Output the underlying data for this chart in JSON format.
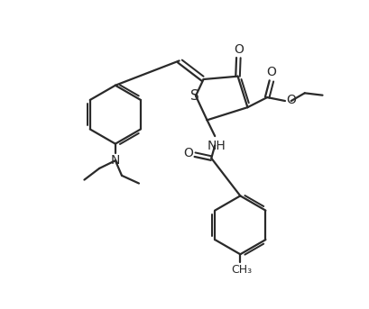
{
  "bg_color": "#ffffff",
  "line_color": "#2a2a2a",
  "line_width": 1.6,
  "figsize": [
    4.1,
    3.43
  ],
  "dpi": 100,
  "xlim": [
    0,
    10
  ],
  "ylim": [
    0,
    8.6
  ]
}
